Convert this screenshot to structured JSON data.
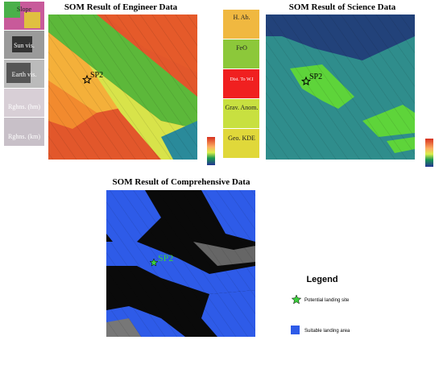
{
  "engineer_panel": {
    "title": "SOM Result of Engineer Data",
    "layers": [
      "Slope",
      "Sun vis.",
      "Earth vis.",
      "Rghns. (hm)",
      "Rghns. (km)"
    ],
    "marker": "SP2"
  },
  "science_panel": {
    "title": "SOM Result of Science Data",
    "layers": [
      "H. Ab.",
      "FeO",
      "Dist. To W.I",
      "Grav. Anom.",
      "Geo. KDE"
    ],
    "marker": "SP2"
  },
  "comprehensive_panel": {
    "title": "SOM Result of Comprehensive Data",
    "marker": "SP2"
  },
  "legend": {
    "title": "Legend",
    "items": [
      "Potential landing site",
      "Suitable landing area"
    ]
  }
}
